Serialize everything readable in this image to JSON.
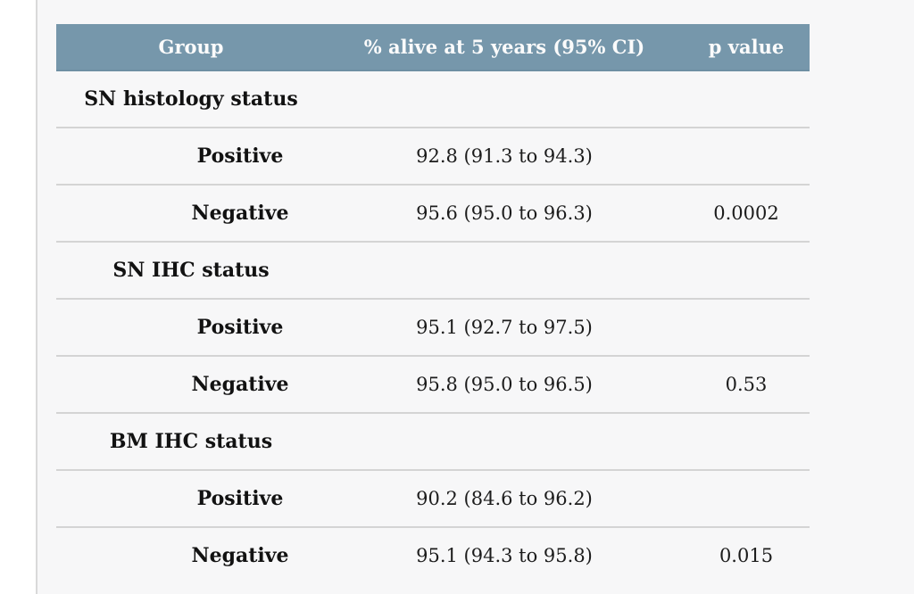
{
  "colors": {
    "header_background": "#7697ab",
    "header_text": "#fbfbfb",
    "row_divider": "#d4d4d4",
    "page_background": "#f7f7f8",
    "margin_strip": "#ffffff"
  },
  "table": {
    "columns": [
      {
        "label": "Group"
      },
      {
        "label": "% alive at 5 years (95% CI)"
      },
      {
        "label": "p value"
      }
    ],
    "sections": [
      {
        "label": "SN histology status",
        "rows": [
          {
            "group": "Positive",
            "alive": "92.8 (91.3 to 94.3)",
            "p": ""
          },
          {
            "group": "Negative",
            "alive": "95.6 (95.0 to 96.3)",
            "p": "0.0002"
          }
        ]
      },
      {
        "label": "SN IHC status",
        "rows": [
          {
            "group": "Positive",
            "alive": "95.1 (92.7 to 97.5)",
            "p": ""
          },
          {
            "group": "Negative",
            "alive": "95.8 (95.0 to 96.5)",
            "p": "0.53"
          }
        ]
      },
      {
        "label": "BM IHC status",
        "rows": [
          {
            "group": "Positive",
            "alive": "90.2 (84.6 to 96.2)",
            "p": ""
          },
          {
            "group": "Negative",
            "alive": "95.1 (94.3 to 95.8)",
            "p": "0.015"
          }
        ]
      }
    ]
  }
}
